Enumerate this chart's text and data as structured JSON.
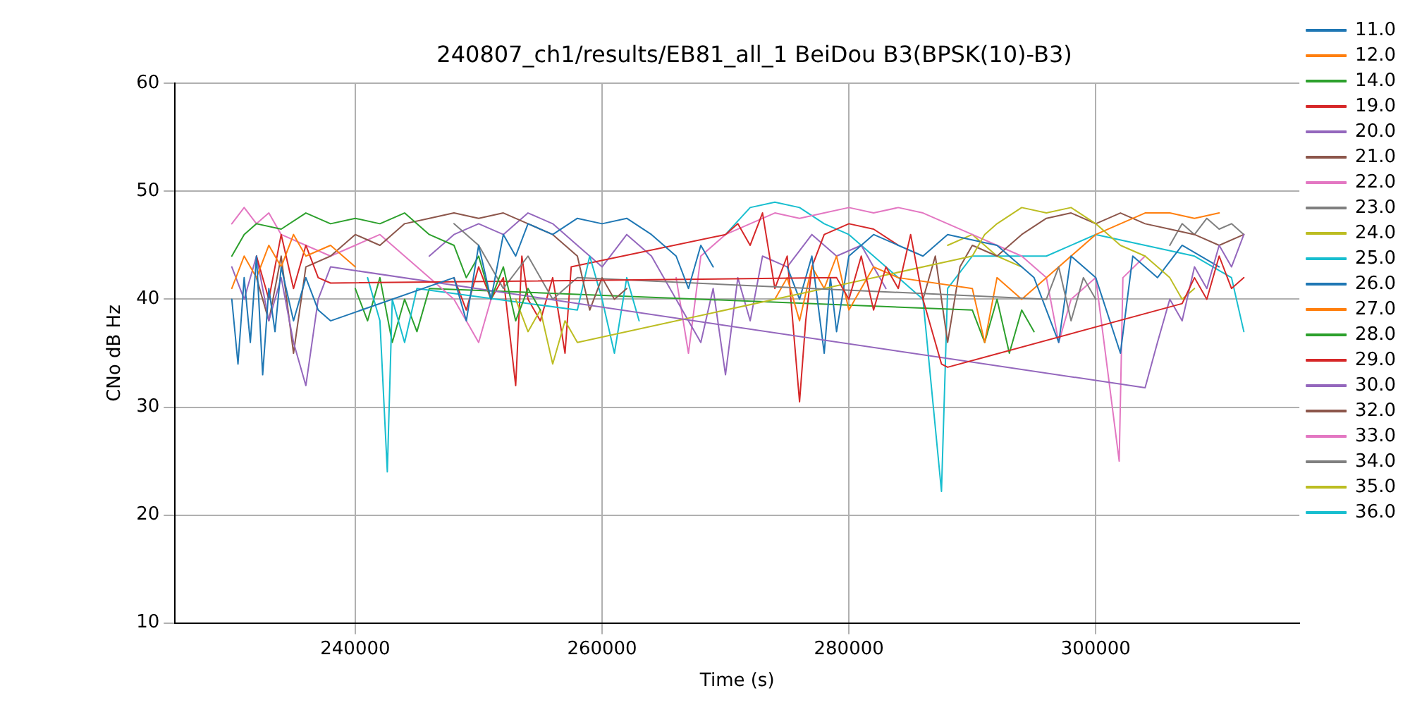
{
  "chart_data": {
    "type": "line",
    "title": "240807_ch1/results/EB81_all_1 BeiDou B3(BPSK(10)-B3)",
    "xlabel": "Time (s)",
    "ylabel": "CNo dB Hz",
    "xlim": [
      225400,
      316500
    ],
    "ylim": [
      10,
      60
    ],
    "xticks": [
      240000,
      260000,
      280000,
      300000
    ],
    "yticks": [
      10,
      20,
      30,
      40,
      50,
      60
    ],
    "grid": true,
    "legend": "right",
    "marker": "none",
    "series": [
      {
        "name": "11.0",
        "color": "#1f77b4",
        "x": [
          230000,
          230500,
          231000,
          231500,
          232000,
          232500,
          233000,
          233500,
          234000,
          235000,
          236000,
          237000,
          238000,
          248000,
          249000,
          250000,
          251000,
          252000,
          253000,
          254000,
          256000,
          258000,
          260000,
          262000,
          264000,
          266000,
          267000,
          268000,
          269000
        ],
        "values": [
          40,
          34,
          42,
          36,
          44,
          33,
          41,
          37,
          43,
          38,
          42,
          39,
          38,
          42,
          38,
          45,
          40,
          46,
          44,
          47,
          46,
          47.5,
          47,
          47.5,
          46,
          44,
          41,
          45,
          43
        ]
      },
      {
        "name": "12.0",
        "color": "#ff7f0e",
        "x": [
          230000,
          231000,
          232000,
          233000,
          234000,
          235000,
          236000,
          238000,
          240000
        ],
        "values": [
          41,
          44,
          42,
          45,
          43,
          46,
          44,
          45,
          43
        ]
      },
      {
        "name": "14.0",
        "color": "#2ca02c",
        "x": [
          230000,
          231000,
          232000,
          234000,
          236000,
          238000,
          240000,
          242000,
          244000,
          246000,
          248000,
          249000,
          250000,
          251000,
          252000,
          253000,
          254000,
          255000
        ],
        "values": [
          44,
          46,
          47,
          46.5,
          48,
          47,
          47.5,
          47,
          48,
          46,
          45,
          42,
          44,
          40,
          43,
          38,
          41,
          39
        ]
      },
      {
        "name": "19.0",
        "color": "#d62728",
        "x": [
          232000,
          233000,
          234000,
          235000,
          236000,
          237000,
          238000,
          279000,
          280000,
          281000,
          282000,
          283000,
          284000,
          285000,
          286000,
          287000,
          287500,
          288000,
          307000,
          308000,
          309000,
          310000,
          311000,
          312000
        ],
        "values": [
          44,
          40,
          46,
          41,
          45,
          42,
          41.5,
          42,
          40,
          44,
          39,
          43,
          41,
          46,
          40,
          36,
          34,
          33.7,
          39.6,
          42,
          40,
          44,
          41,
          42
        ]
      },
      {
        "name": "20.0",
        "color": "#9467bd",
        "x": [
          230000,
          231000,
          232000,
          233000,
          234000,
          235000,
          236000,
          237000,
          238000,
          304000,
          305000,
          306000,
          307000,
          308000,
          309000,
          310000,
          311000,
          312000
        ],
        "values": [
          43,
          40,
          44,
          38,
          42,
          36,
          32,
          40,
          43,
          31.8,
          36,
          40,
          38,
          43,
          41,
          45,
          43,
          46
        ]
      },
      {
        "name": "21.0",
        "color": "#8c564b",
        "x": [
          232000,
          233000,
          234000,
          235000,
          236000,
          238000,
          240000,
          242000,
          244000,
          246000,
          248000,
          250000,
          252000,
          254000,
          256000,
          258000,
          259000,
          260000,
          261000,
          262000
        ],
        "values": [
          42,
          38,
          44,
          35,
          43,
          44,
          46,
          45,
          47,
          47.5,
          48,
          47.5,
          48,
          47,
          46,
          44,
          39,
          42,
          40,
          41
        ]
      },
      {
        "name": "22.0",
        "color": "#e377c2",
        "x": [
          230000,
          231000,
          232000,
          233000,
          234000,
          236000,
          238000,
          240000,
          242000,
          244000,
          246000,
          248000,
          250000,
          251000
        ],
        "values": [
          47,
          48.5,
          47,
          48,
          46,
          45,
          44,
          45,
          46,
          44,
          42,
          40,
          36,
          40
        ]
      },
      {
        "name": "23.0",
        "color": "#7f7f7f",
        "x": [
          248000,
          250000,
          252000,
          254000,
          256000,
          258000,
          296000,
          297000,
          298000,
          299000,
          300000
        ],
        "values": [
          47,
          45,
          41,
          44,
          40,
          42,
          40,
          43,
          38,
          42,
          40
        ]
      },
      {
        "name": "24.0",
        "color": "#bcbd22",
        "x": [
          253000,
          254000,
          255000,
          256000,
          257000,
          258000,
          290000,
          291000,
          292000,
          294000,
          296000,
          298000,
          300000,
          302000,
          304000,
          306000,
          307000,
          308000
        ],
        "values": [
          40,
          37,
          39,
          34,
          38,
          36,
          44,
          46,
          47,
          48.5,
          48,
          48.5,
          47,
          45,
          44,
          42,
          40,
          41
        ]
      },
      {
        "name": "25.0",
        "color": "#17becf",
        "x": [
          241000,
          242000,
          242600,
          243000,
          244000,
          245000,
          258000,
          259000,
          260000,
          261000,
          262000,
          263000
        ],
        "values": [
          42,
          38,
          24,
          40,
          36,
          41,
          39,
          44,
          40,
          35,
          42,
          38
        ]
      },
      {
        "name": "26.0",
        "color": "#1f77b4",
        "x": [
          275000,
          276000,
          277000,
          278000,
          278500,
          279000,
          280000,
          282000,
          284000,
          286000,
          288000,
          292000,
          295000,
          297000,
          298000,
          300000,
          302000,
          303000,
          305000,
          307000,
          310000
        ],
        "values": [
          43,
          40,
          44,
          35,
          42,
          37,
          44,
          46,
          45,
          44,
          46,
          45,
          42,
          36,
          44,
          42,
          35,
          44,
          42,
          45,
          43
        ]
      },
      {
        "name": "27.0",
        "color": "#ff7f0e",
        "x": [
          274000,
          275000,
          276000,
          277000,
          278000,
          279000,
          280000,
          282000,
          284000,
          290000,
          291000,
          292000,
          294000,
          300000,
          302000,
          304000,
          306000,
          308000,
          310000
        ],
        "values": [
          40,
          42,
          38,
          43,
          41,
          44,
          39,
          43,
          42,
          41,
          36,
          42,
          40,
          46,
          47,
          48,
          48,
          47.5,
          48
        ]
      },
      {
        "name": "28.0",
        "color": "#2ca02c",
        "x": [
          240000,
          241000,
          242000,
          243000,
          244000,
          245000,
          246000,
          290000,
          291000,
          292000,
          293000,
          294000,
          295000
        ],
        "values": [
          41,
          38,
          42,
          36,
          40,
          37,
          41,
          39,
          36,
          40,
          35,
          39,
          37
        ]
      },
      {
        "name": "29.0",
        "color": "#d62728",
        "x": [
          248000,
          249000,
          250000,
          251000,
          252000,
          253000,
          253500,
          254000,
          255000,
          256000,
          257000,
          257500,
          270000,
          271000,
          272000,
          273000,
          274000,
          275000,
          276000,
          276500,
          277000,
          278000,
          280000,
          282000,
          284000
        ],
        "values": [
          42,
          39,
          43,
          40,
          42,
          32,
          44,
          40,
          38,
          42,
          35,
          43,
          46,
          47,
          45,
          48,
          41,
          44,
          30.5,
          38,
          43,
          46,
          47,
          46.5,
          45
        ]
      },
      {
        "name": "30.0",
        "color": "#9467bd",
        "x": [
          246000,
          248000,
          250000,
          252000,
          254000,
          256000,
          258000,
          260000,
          262000,
          264000,
          266000,
          268000,
          269000,
          270000,
          271000,
          272000,
          273000,
          275000,
          277000,
          279000,
          281000,
          283000
        ],
        "values": [
          44,
          46,
          47,
          46,
          48,
          47,
          45,
          43,
          46,
          44,
          40,
          36,
          41,
          33,
          42,
          38,
          44,
          43,
          46,
          44,
          45,
          41
        ]
      },
      {
        "name": "32.0",
        "color": "#8c564b",
        "x": [
          286000,
          287000,
          288000,
          289000,
          290000,
          292000,
          294000,
          296000,
          298000,
          300000,
          302000,
          304000,
          306000,
          308000,
          310000,
          312000
        ],
        "values": [
          40,
          44,
          36,
          43,
          45,
          44,
          46,
          47.5,
          48,
          47,
          48,
          47,
          46.5,
          46,
          45,
          46
        ]
      },
      {
        "name": "33.0",
        "color": "#e377c2",
        "x": [
          266000,
          267000,
          268000,
          270000,
          272000,
          274000,
          276000,
          278000,
          280000,
          282000,
          284000,
          286000,
          288000,
          290000,
          292000,
          294000,
          296000,
          297000,
          298000,
          300000,
          301900,
          302200,
          304000
        ],
        "values": [
          42,
          35,
          44,
          46,
          47,
          48,
          47.5,
          48,
          48.5,
          48,
          48.5,
          48,
          47,
          46,
          45,
          44,
          42,
          36,
          40,
          42,
          25,
          42,
          44
        ]
      },
      {
        "name": "34.0",
        "color": "#7f7f7f",
        "x": [
          306000,
          307000,
          308000,
          309000,
          310000,
          311000,
          312000
        ],
        "values": [
          45,
          47,
          46,
          47.5,
          46.5,
          47,
          46
        ]
      },
      {
        "name": "35.0",
        "color": "#bcbd22",
        "x": [
          288000,
          290000,
          292000,
          294000
        ],
        "values": [
          45,
          46,
          44,
          43
        ]
      },
      {
        "name": "36.0",
        "color": "#17becf",
        "x": [
          270000,
          272000,
          274000,
          276000,
          278000,
          280000,
          282000,
          284000,
          286000,
          287500,
          288000,
          290000,
          296000,
          300000,
          304000,
          308000,
          311000,
          312000
        ],
        "values": [
          46,
          48.5,
          49,
          48.5,
          47,
          46,
          44,
          42,
          40,
          22.2,
          41,
          44,
          44,
          46,
          45,
          44,
          42,
          37
        ]
      }
    ]
  }
}
